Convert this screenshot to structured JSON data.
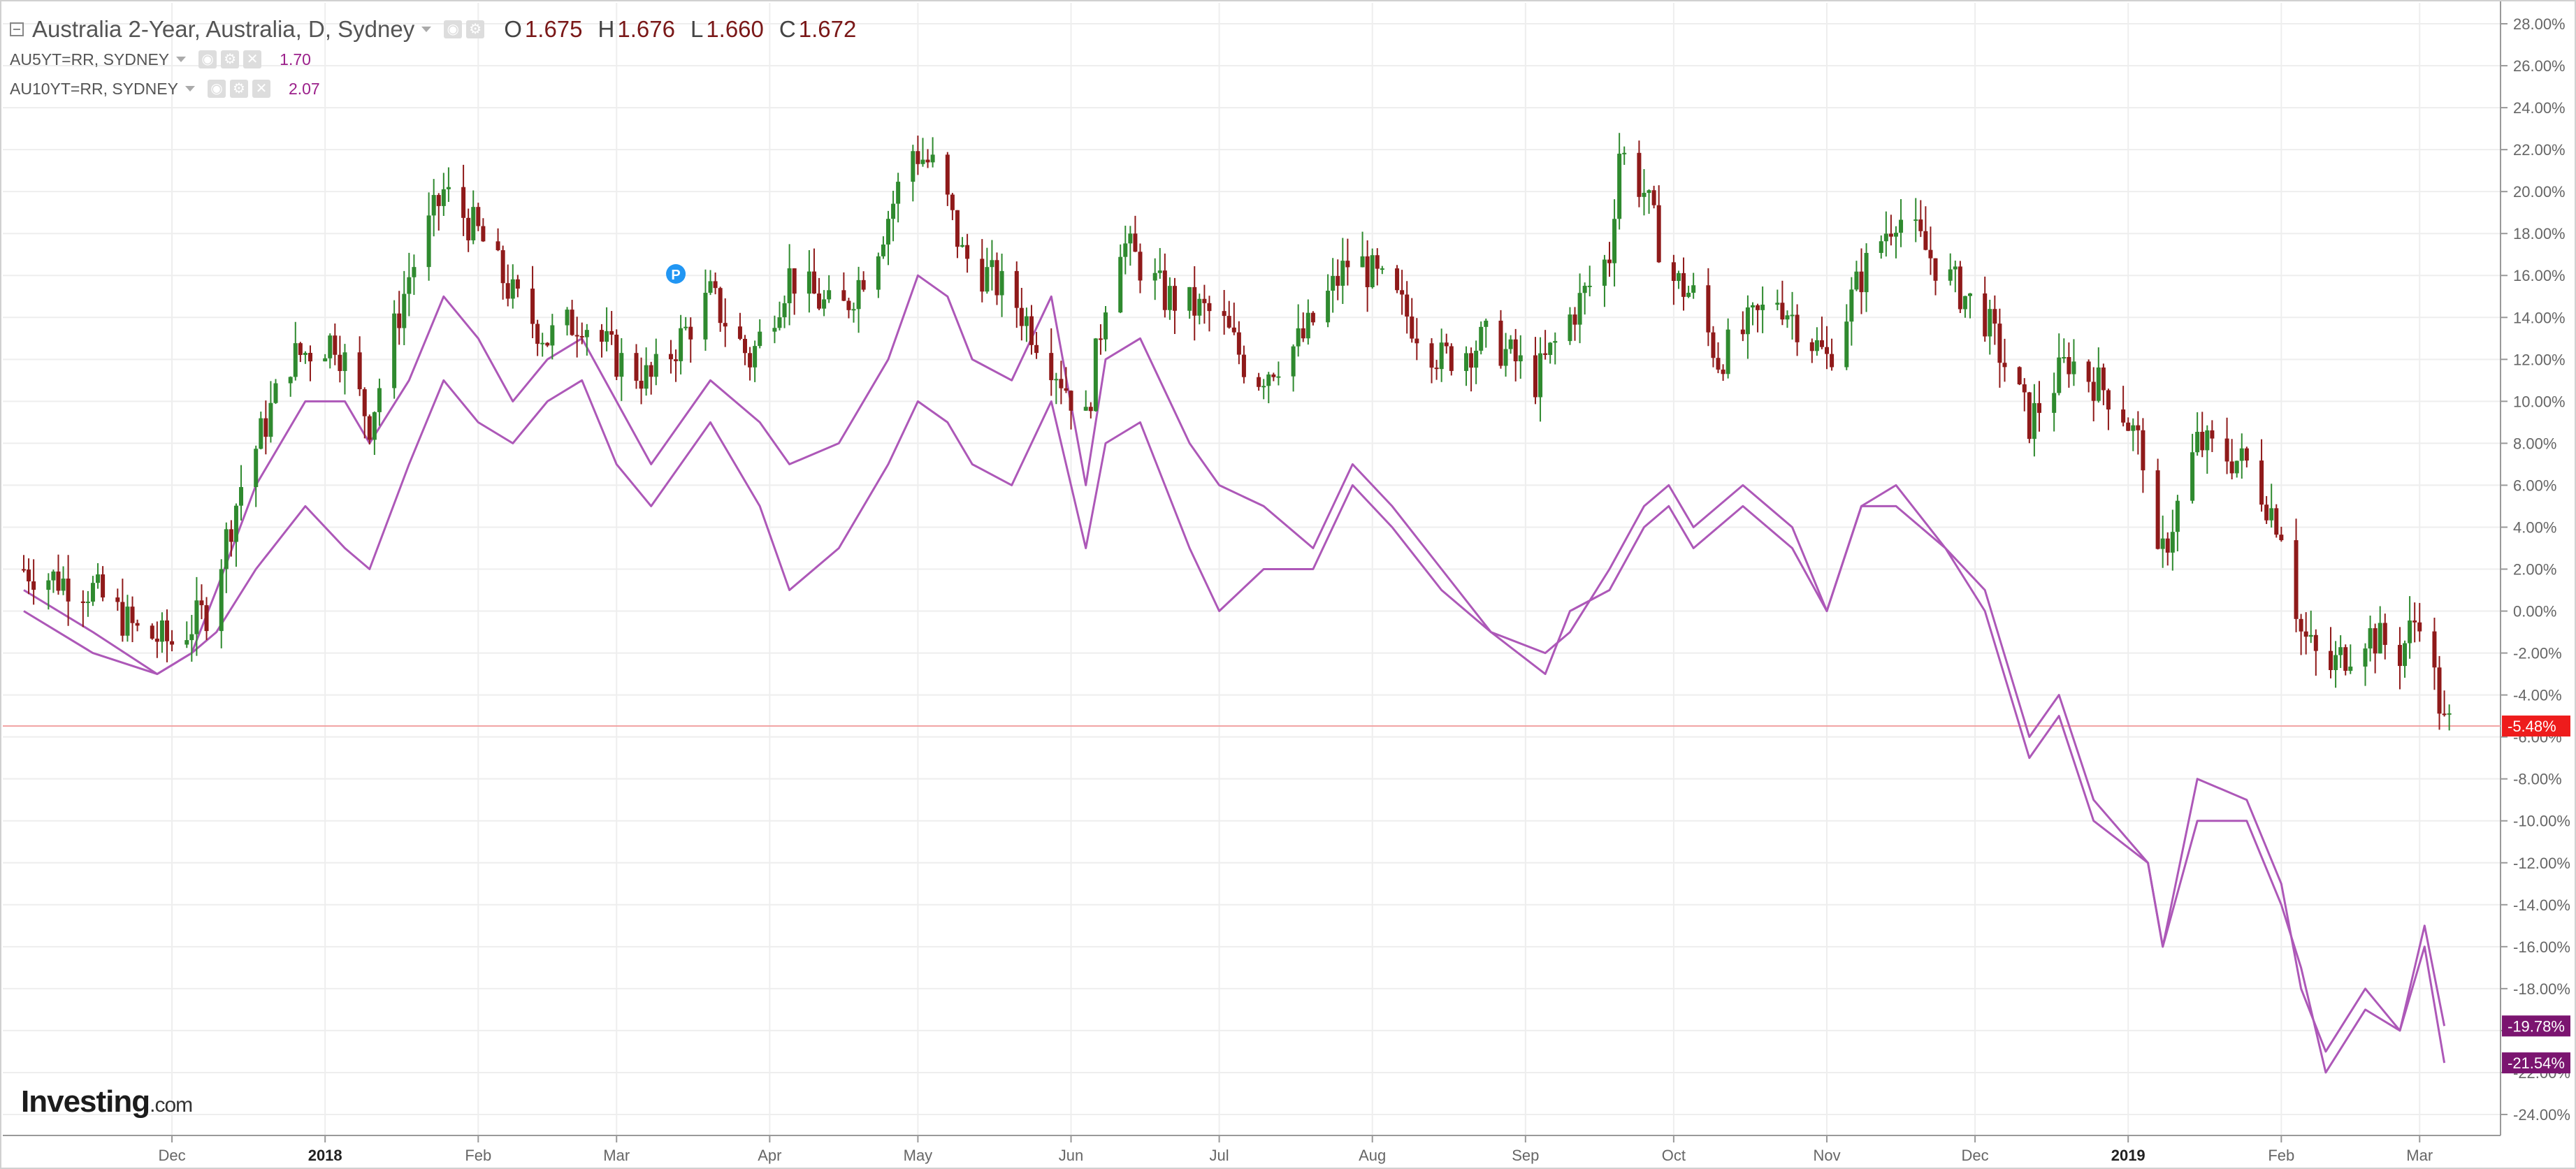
{
  "header": {
    "title": "Australia 2-Year, Australia, D, Sydney",
    "ohlc": [
      {
        "k": "O",
        "v": "1.675"
      },
      {
        "k": "H",
        "v": "1.676"
      },
      {
        "k": "L",
        "v": "1.660"
      },
      {
        "k": "C",
        "v": "1.672"
      }
    ]
  },
  "legend": [
    {
      "label": "AU5YT=RR, SYDNEY",
      "value": "1.70",
      "color": "#9b1f8a"
    },
    {
      "label": "AU10YT=RR, SYDNEY",
      "value": "2.07",
      "color": "#9b1f8a"
    }
  ],
  "branding": {
    "name": "Investing",
    "suffix": ".com"
  },
  "marker": {
    "label": "P",
    "color": "#2196f3"
  },
  "colors": {
    "up": "#2f8a2f",
    "down": "#8f1a1a",
    "line": "#ad58b8",
    "price_line": "#f1a4a4",
    "grid": "#eeeeee",
    "axis_text": "#666666"
  },
  "chart_data": {
    "type": "candlestick-with-lines",
    "y_unit": "% change",
    "y_axis": {
      "min": -25,
      "max": 29,
      "ticks": [
        "28.00%",
        "26.00%",
        "24.00%",
        "22.00%",
        "20.00%",
        "18.00%",
        "16.00%",
        "14.00%",
        "12.00%",
        "10.00%",
        "8.00%",
        "6.00%",
        "4.00%",
        "2.00%",
        "0.00%",
        "-2.00%",
        "-4.00%",
        "-6.00%",
        "-8.00%",
        "-10.00%",
        "-12.00%",
        "-14.00%",
        "-16.00%",
        "-18.00%",
        "-20.00%",
        "-22.00%",
        "-24.00%"
      ]
    },
    "x_axis": {
      "start": "2017-11-01",
      "end": "2019-03-12",
      "labels": [
        {
          "d": "2017-12-01",
          "t": "Dec",
          "bold": false
        },
        {
          "d": "2018-01-01",
          "t": "2018",
          "bold": true
        },
        {
          "d": "2018-02-01",
          "t": "Feb",
          "bold": false
        },
        {
          "d": "2018-03-01",
          "t": "Mar",
          "bold": false
        },
        {
          "d": "2018-04-01",
          "t": "Apr",
          "bold": false
        },
        {
          "d": "2018-05-01",
          "t": "May",
          "bold": false
        },
        {
          "d": "2018-06-01",
          "t": "Jun",
          "bold": false
        },
        {
          "d": "2018-07-01",
          "t": "Jul",
          "bold": false
        },
        {
          "d": "2018-08-01",
          "t": "Aug",
          "bold": false
        },
        {
          "d": "2018-09-01",
          "t": "Sep",
          "bold": false
        },
        {
          "d": "2018-10-01",
          "t": "Oct",
          "bold": false
        },
        {
          "d": "2018-11-01",
          "t": "Nov",
          "bold": false
        },
        {
          "d": "2018-12-01",
          "t": "Dec",
          "bold": false
        },
        {
          "d": "2019-01-01",
          "t": "2019",
          "bold": true
        },
        {
          "d": "2019-02-01",
          "t": "Feb",
          "bold": false
        },
        {
          "d": "2019-03-01",
          "t": "Mar",
          "bold": false
        }
      ]
    },
    "price_line_value": -5.48,
    "end_badges": [
      {
        "value": -5.48,
        "label": "-5.48%",
        "color": "#ee1c1c"
      },
      {
        "value": -19.78,
        "label": "-19.78%",
        "color": "#7b1570"
      },
      {
        "value": -21.54,
        "label": "-21.54%",
        "color": "#7b1570"
      }
    ],
    "candles_close": [
      {
        "d": "2017-11-01",
        "c": 2
      },
      {
        "d": "2017-11-15",
        "c": 1
      },
      {
        "d": "2017-11-24",
        "c": -1
      },
      {
        "d": "2017-12-01",
        "c": -1.5
      },
      {
        "d": "2017-12-08",
        "c": 0
      },
      {
        "d": "2017-12-15",
        "c": 6
      },
      {
        "d": "2017-12-25",
        "c": 12
      },
      {
        "d": "2018-01-03",
        "c": 13
      },
      {
        "d": "2018-01-10",
        "c": 9
      },
      {
        "d": "2018-01-18",
        "c": 16
      },
      {
        "d": "2018-01-25",
        "c": 20
      },
      {
        "d": "2018-02-01",
        "c": 18
      },
      {
        "d": "2018-02-08",
        "c": 15
      },
      {
        "d": "2018-02-15",
        "c": 13
      },
      {
        "d": "2018-02-22",
        "c": 14
      },
      {
        "d": "2018-03-01",
        "c": 12
      },
      {
        "d": "2018-03-08",
        "c": 11
      },
      {
        "d": "2018-03-20",
        "c": 15
      },
      {
        "d": "2018-03-28",
        "c": 12
      },
      {
        "d": "2018-04-05",
        "c": 16
      },
      {
        "d": "2018-04-15",
        "c": 14
      },
      {
        "d": "2018-04-22",
        "c": 17
      },
      {
        "d": "2018-04-30",
        "c": 22
      },
      {
        "d": "2018-05-05",
        "c": 21
      },
      {
        "d": "2018-05-10",
        "c": 17
      },
      {
        "d": "2018-05-20",
        "c": 15
      },
      {
        "d": "2018-05-28",
        "c": 12
      },
      {
        "d": "2018-06-04",
        "c": 9
      },
      {
        "d": "2018-06-10",
        "c": 18
      },
      {
        "d": "2018-06-20",
        "c": 15
      },
      {
        "d": "2018-07-01",
        "c": 14
      },
      {
        "d": "2018-07-08",
        "c": 11
      },
      {
        "d": "2018-07-18",
        "c": 13
      },
      {
        "d": "2018-07-28",
        "c": 17
      },
      {
        "d": "2018-08-05",
        "c": 15
      },
      {
        "d": "2018-08-15",
        "c": 12
      },
      {
        "d": "2018-08-25",
        "c": 13
      },
      {
        "d": "2018-09-03",
        "c": 11
      },
      {
        "d": "2018-09-10",
        "c": 14
      },
      {
        "d": "2018-09-18",
        "c": 17
      },
      {
        "d": "2018-09-20",
        "c": 22
      },
      {
        "d": "2018-09-25",
        "c": 20
      },
      {
        "d": "2018-09-30",
        "c": 16
      },
      {
        "d": "2018-10-05",
        "c": 15
      },
      {
        "d": "2018-10-10",
        "c": 12
      },
      {
        "d": "2018-10-22",
        "c": 15
      },
      {
        "d": "2018-11-01",
        "c": 12
      },
      {
        "d": "2018-11-08",
        "c": 16
      },
      {
        "d": "2018-11-15",
        "c": 19
      },
      {
        "d": "2018-11-25",
        "c": 16
      },
      {
        "d": "2018-12-03",
        "c": 14
      },
      {
        "d": "2018-12-12",
        "c": 9
      },
      {
        "d": "2018-12-20",
        "c": 12
      },
      {
        "d": "2018-12-30",
        "c": 10
      },
      {
        "d": "2019-01-05",
        "c": 7
      },
      {
        "d": "2019-01-07",
        "c": 2
      },
      {
        "d": "2019-01-15",
        "c": 8
      },
      {
        "d": "2019-01-25",
        "c": 7
      },
      {
        "d": "2019-02-01",
        "c": 4
      },
      {
        "d": "2019-02-05",
        "c": -1
      },
      {
        "d": "2019-02-10",
        "c": -3
      },
      {
        "d": "2019-02-18",
        "c": -1
      },
      {
        "d": "2019-02-25",
        "c": -2
      },
      {
        "d": "2019-03-01",
        "c": 0
      },
      {
        "d": "2019-03-06",
        "c": -5.48
      }
    ],
    "series": [
      {
        "points": [
          {
            "d": "2017-11-01",
            "v": 1
          },
          {
            "d": "2017-11-15",
            "v": -1
          },
          {
            "d": "2017-11-28",
            "v": -3
          },
          {
            "d": "2017-12-05",
            "v": -2
          },
          {
            "d": "2017-12-10",
            "v": 1
          },
          {
            "d": "2017-12-18",
            "v": 6
          },
          {
            "d": "2017-12-28",
            "v": 10
          },
          {
            "d": "2018-01-05",
            "v": 10
          },
          {
            "d": "2018-01-10",
            "v": 8
          },
          {
            "d": "2018-01-18",
            "v": 11
          },
          {
            "d": "2018-01-25",
            "v": 15
          },
          {
            "d": "2018-02-01",
            "v": 13
          },
          {
            "d": "2018-02-08",
            "v": 10
          },
          {
            "d": "2018-02-15",
            "v": 12
          },
          {
            "d": "2018-02-22",
            "v": 13
          },
          {
            "d": "2018-03-01",
            "v": 10
          },
          {
            "d": "2018-03-08",
            "v": 7
          },
          {
            "d": "2018-03-20",
            "v": 11
          },
          {
            "d": "2018-03-30",
            "v": 9
          },
          {
            "d": "2018-04-05",
            "v": 7
          },
          {
            "d": "2018-04-15",
            "v": 8
          },
          {
            "d": "2018-04-25",
            "v": 12
          },
          {
            "d": "2018-05-01",
            "v": 16
          },
          {
            "d": "2018-05-07",
            "v": 15
          },
          {
            "d": "2018-05-12",
            "v": 12
          },
          {
            "d": "2018-05-20",
            "v": 11
          },
          {
            "d": "2018-05-28",
            "v": 15
          },
          {
            "d": "2018-06-04",
            "v": 6
          },
          {
            "d": "2018-06-08",
            "v": 12
          },
          {
            "d": "2018-06-15",
            "v": 13
          },
          {
            "d": "2018-06-25",
            "v": 8
          },
          {
            "d": "2018-07-01",
            "v": 6
          },
          {
            "d": "2018-07-10",
            "v": 5
          },
          {
            "d": "2018-07-20",
            "v": 3
          },
          {
            "d": "2018-07-28",
            "v": 7
          },
          {
            "d": "2018-08-05",
            "v": 5
          },
          {
            "d": "2018-08-15",
            "v": 2
          },
          {
            "d": "2018-08-25",
            "v": -1
          },
          {
            "d": "2018-09-05",
            "v": -2
          },
          {
            "d": "2018-09-10",
            "v": -1
          },
          {
            "d": "2018-09-18",
            "v": 2
          },
          {
            "d": "2018-09-25",
            "v": 5
          },
          {
            "d": "2018-09-30",
            "v": 6
          },
          {
            "d": "2018-10-05",
            "v": 4
          },
          {
            "d": "2018-10-15",
            "v": 6
          },
          {
            "d": "2018-10-25",
            "v": 4
          },
          {
            "d": "2018-11-01",
            "v": 0
          },
          {
            "d": "2018-11-08",
            "v": 5
          },
          {
            "d": "2018-11-15",
            "v": 6
          },
          {
            "d": "2018-11-25",
            "v": 3
          },
          {
            "d": "2018-12-03",
            "v": 1
          },
          {
            "d": "2018-12-12",
            "v": -6
          },
          {
            "d": "2018-12-18",
            "v": -4
          },
          {
            "d": "2018-12-25",
            "v": -9
          },
          {
            "d": "2019-01-05",
            "v": -12
          },
          {
            "d": "2019-01-08",
            "v": -16
          },
          {
            "d": "2019-01-15",
            "v": -8
          },
          {
            "d": "2019-01-25",
            "v": -9
          },
          {
            "d": "2019-02-01",
            "v": -13
          },
          {
            "d": "2019-02-05",
            "v": -18
          },
          {
            "d": "2019-02-10",
            "v": -21
          },
          {
            "d": "2019-02-18",
            "v": -18
          },
          {
            "d": "2019-02-25",
            "v": -20
          },
          {
            "d": "2019-03-02",
            "v": -15
          },
          {
            "d": "2019-03-06",
            "v": -19.78
          }
        ]
      },
      {
        "points": [
          {
            "d": "2017-11-01",
            "v": 0
          },
          {
            "d": "2017-11-15",
            "v": -2
          },
          {
            "d": "2017-11-28",
            "v": -3
          },
          {
            "d": "2017-12-05",
            "v": -2
          },
          {
            "d": "2017-12-10",
            "v": -1
          },
          {
            "d": "2017-12-18",
            "v": 2
          },
          {
            "d": "2017-12-28",
            "v": 5
          },
          {
            "d": "2018-01-05",
            "v": 3
          },
          {
            "d": "2018-01-10",
            "v": 2
          },
          {
            "d": "2018-01-18",
            "v": 7
          },
          {
            "d": "2018-01-25",
            "v": 11
          },
          {
            "d": "2018-02-01",
            "v": 9
          },
          {
            "d": "2018-02-08",
            "v": 8
          },
          {
            "d": "2018-02-15",
            "v": 10
          },
          {
            "d": "2018-02-22",
            "v": 11
          },
          {
            "d": "2018-03-01",
            "v": 7
          },
          {
            "d": "2018-03-08",
            "v": 5
          },
          {
            "d": "2018-03-20",
            "v": 9
          },
          {
            "d": "2018-03-30",
            "v": 5
          },
          {
            "d": "2018-04-05",
            "v": 1
          },
          {
            "d": "2018-04-15",
            "v": 3
          },
          {
            "d": "2018-04-25",
            "v": 7
          },
          {
            "d": "2018-05-01",
            "v": 10
          },
          {
            "d": "2018-05-07",
            "v": 9
          },
          {
            "d": "2018-05-12",
            "v": 7
          },
          {
            "d": "2018-05-20",
            "v": 6
          },
          {
            "d": "2018-05-28",
            "v": 10
          },
          {
            "d": "2018-06-04",
            "v": 3
          },
          {
            "d": "2018-06-08",
            "v": 8
          },
          {
            "d": "2018-06-15",
            "v": 9
          },
          {
            "d": "2018-06-25",
            "v": 3
          },
          {
            "d": "2018-07-01",
            "v": 0
          },
          {
            "d": "2018-07-10",
            "v": 2
          },
          {
            "d": "2018-07-20",
            "v": 2
          },
          {
            "d": "2018-07-28",
            "v": 6
          },
          {
            "d": "2018-08-05",
            "v": 4
          },
          {
            "d": "2018-08-15",
            "v": 1
          },
          {
            "d": "2018-08-25",
            "v": -1
          },
          {
            "d": "2018-09-05",
            "v": -3
          },
          {
            "d": "2018-09-10",
            "v": 0
          },
          {
            "d": "2018-09-18",
            "v": 1
          },
          {
            "d": "2018-09-25",
            "v": 4
          },
          {
            "d": "2018-09-30",
            "v": 5
          },
          {
            "d": "2018-10-05",
            "v": 3
          },
          {
            "d": "2018-10-15",
            "v": 5
          },
          {
            "d": "2018-10-25",
            "v": 3
          },
          {
            "d": "2018-11-01",
            "v": 0
          },
          {
            "d": "2018-11-08",
            "v": 5
          },
          {
            "d": "2018-11-15",
            "v": 5
          },
          {
            "d": "2018-11-25",
            "v": 3
          },
          {
            "d": "2018-12-03",
            "v": 0
          },
          {
            "d": "2018-12-12",
            "v": -7
          },
          {
            "d": "2018-12-18",
            "v": -5
          },
          {
            "d": "2018-12-25",
            "v": -10
          },
          {
            "d": "2019-01-05",
            "v": -12
          },
          {
            "d": "2019-01-08",
            "v": -16
          },
          {
            "d": "2019-01-15",
            "v": -10
          },
          {
            "d": "2019-01-25",
            "v": -10
          },
          {
            "d": "2019-02-01",
            "v": -14
          },
          {
            "d": "2019-02-05",
            "v": -17
          },
          {
            "d": "2019-02-10",
            "v": -22
          },
          {
            "d": "2019-02-18",
            "v": -19
          },
          {
            "d": "2019-02-25",
            "v": -20
          },
          {
            "d": "2019-03-02",
            "v": -16
          },
          {
            "d": "2019-03-06",
            "v": -21.54
          }
        ]
      }
    ]
  }
}
